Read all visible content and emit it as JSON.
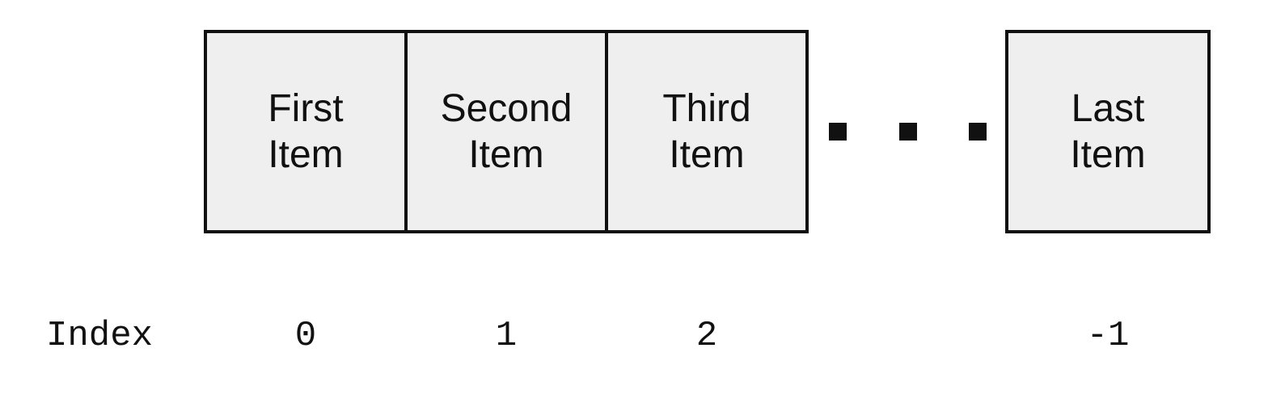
{
  "colors": {
    "cell_fill": "#efefef",
    "stroke": "#111111",
    "text": "#111111"
  },
  "cells": [
    {
      "label": "First\nItem",
      "index": "0"
    },
    {
      "label": "Second\nItem",
      "index": "1"
    },
    {
      "label": "Third\nItem",
      "index": "2"
    },
    {
      "label": "Last\nItem",
      "index": "-1"
    }
  ],
  "ellipsis_icon": "three-square-dots",
  "index_label": "Index"
}
